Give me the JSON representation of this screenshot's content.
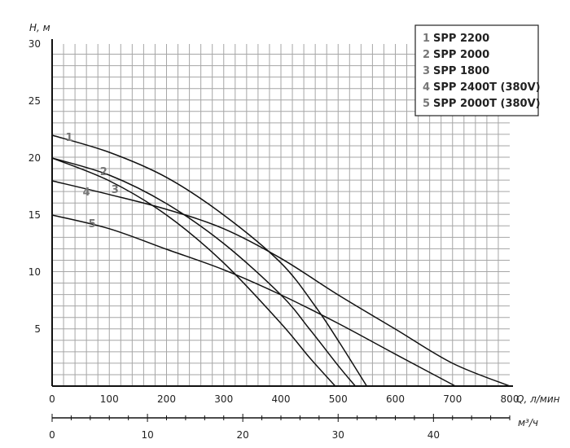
{
  "chart_data": {
    "type": "line",
    "y_label": "H, м",
    "x_label": "Q, л/мин",
    "x2_label": "м³/ч",
    "xlim": [
      0,
      800
    ],
    "ylim": [
      0,
      30
    ],
    "x_ticks": [
      "0",
      "100",
      "200",
      "300",
      "400",
      "500",
      "600",
      "700",
      "800"
    ],
    "y_ticks": [
      "5",
      "10",
      "15",
      "20",
      "25",
      "30"
    ],
    "x2_ticks": [
      "0",
      "10",
      "20",
      "30",
      "40"
    ],
    "grid": true,
    "legend_position": "top-right",
    "series": [
      {
        "name": "SPP 2200",
        "number": "1",
        "label_point": [
          30,
          21.8
        ],
        "points": [
          [
            0,
            22.0
          ],
          [
            100,
            20.5
          ],
          [
            200,
            18.3
          ],
          [
            300,
            15.0
          ],
          [
            400,
            10.8
          ],
          [
            460,
            7.0
          ],
          [
            500,
            4.0
          ],
          [
            550,
            0.0
          ]
        ]
      },
      {
        "name": "SPP 2000",
        "number": "2",
        "label_point": [
          90,
          18.8
        ],
        "points": [
          [
            0,
            20.0
          ],
          [
            100,
            18.5
          ],
          [
            200,
            16.0
          ],
          [
            300,
            12.5
          ],
          [
            400,
            8.0
          ],
          [
            450,
            5.0
          ],
          [
            500,
            1.8
          ],
          [
            530,
            0.0
          ]
        ]
      },
      {
        "name": "SPP 1800",
        "number": "3",
        "label_point": [
          110,
          17.2
        ],
        "points": [
          [
            0,
            20.0
          ],
          [
            100,
            18.0
          ],
          [
            200,
            15.0
          ],
          [
            300,
            10.8
          ],
          [
            400,
            5.5
          ],
          [
            450,
            2.5
          ],
          [
            495,
            0.0
          ]
        ]
      },
      {
        "name": "SPP 2400T (380V)",
        "number": "4",
        "label_point": [
          60,
          17.0
        ],
        "points": [
          [
            0,
            18.0
          ],
          [
            100,
            16.8
          ],
          [
            200,
            15.5
          ],
          [
            300,
            13.8
          ],
          [
            400,
            11.2
          ],
          [
            500,
            8.0
          ],
          [
            600,
            5.0
          ],
          [
            700,
            2.0
          ],
          [
            800,
            0.0
          ]
        ]
      },
      {
        "name": "SPP 2000T (380V)",
        "number": "5",
        "label_point": [
          70,
          14.2
        ],
        "points": [
          [
            0,
            15.0
          ],
          [
            100,
            13.8
          ],
          [
            200,
            12.0
          ],
          [
            300,
            10.2
          ],
          [
            400,
            8.0
          ],
          [
            500,
            5.5
          ],
          [
            600,
            2.8
          ],
          [
            705,
            0.0
          ]
        ]
      }
    ]
  }
}
